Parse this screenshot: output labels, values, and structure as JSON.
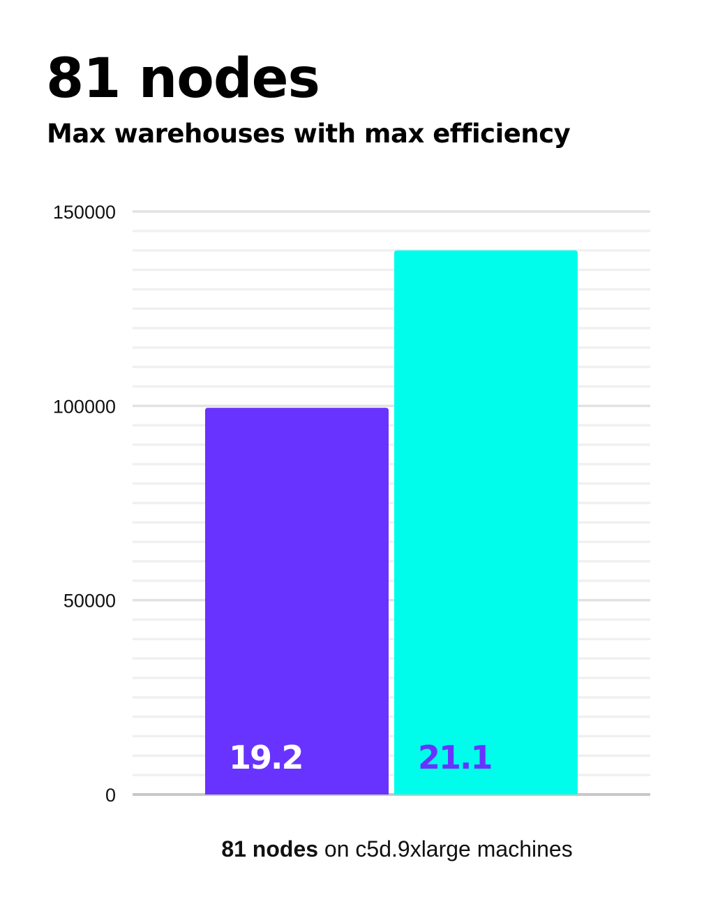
{
  "title": "81 nodes",
  "subtitle": "Max warehouses with max efficiency",
  "footer": {
    "bold": "81 nodes",
    "rest": " on c5d.9xlarge machines"
  },
  "chart_data": {
    "type": "bar",
    "categories": [
      "",
      ""
    ],
    "values": [
      99500,
      140000
    ],
    "data_labels": [
      "19.2",
      "21.1"
    ],
    "colors": [
      "#6933ff",
      "#00fdeb"
    ],
    "label_colors": [
      "#ffffff",
      "#6933ff"
    ],
    "ylim": [
      0,
      150000
    ],
    "yticks": [
      0,
      50000,
      100000,
      150000
    ],
    "ytick_labels": [
      "0",
      "50000",
      "100000",
      "150000"
    ],
    "minor_grid_step": 5000,
    "grid": true,
    "xlabel": "81 nodes on c5d.9xlarge machines"
  }
}
